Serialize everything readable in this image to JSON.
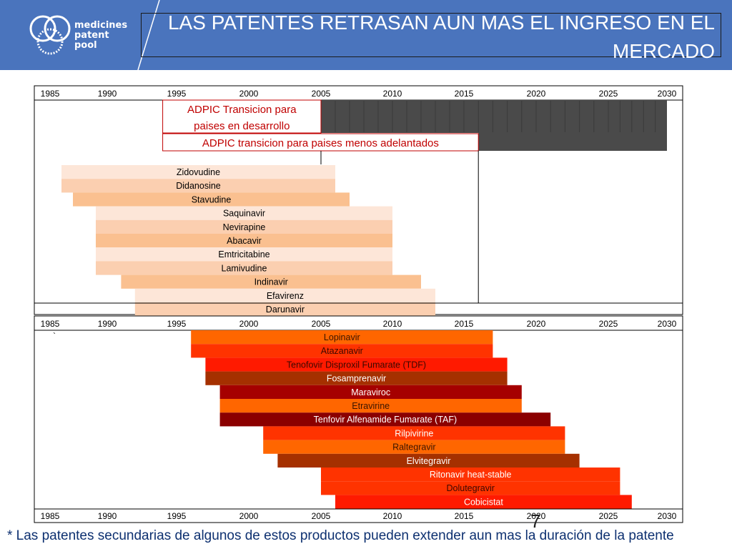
{
  "logo": {
    "lines": [
      "medicines",
      "patent",
      "pool"
    ]
  },
  "header": {
    "title_line1": "LAS PATENTES RETRASAN AUN MAS EL INGRESO EN EL",
    "title_line2": "MERCADO"
  },
  "colors": {
    "header_bg": "#4a74bd",
    "dark_fill": "#4a4a4a",
    "box_red": "#c00000",
    "footnote": "#0d3070"
  },
  "chart_data": {
    "type": "gantt",
    "axis": {
      "ticks": [
        1985,
        1990,
        1995,
        2000,
        2005,
        2010,
        2015,
        2020,
        2025,
        2030
      ],
      "min": 1985,
      "max": 2030
    },
    "trips_boxes": [
      {
        "label_lines": [
          "ADPIC Transicion para",
          "paises en desarrollo"
        ],
        "start": 1994,
        "end": 2005
      },
      {
        "label_lines": [
          "ADPIC transicion para paises menos adelantados"
        ],
        "start": 1994,
        "end": 2016
      }
    ],
    "dark_period": {
      "start": 2005,
      "end": 2030,
      "ldc_start": 2016
    },
    "ldc_deadline": 2016,
    "group1": [
      {
        "name": "Zidovudine",
        "start": 1986,
        "end": 2006,
        "color": "#fde6d8"
      },
      {
        "name": "Didanosine",
        "start": 1986,
        "end": 2006,
        "color": "#fbcfb0"
      },
      {
        "name": "Stavudine",
        "start": 1987,
        "end": 2007,
        "color": "#fac090"
      },
      {
        "name": "Saquinavir",
        "start": 1989,
        "end": 2010,
        "color": "#fde6d8"
      },
      {
        "name": "Nevirapine",
        "start": 1989,
        "end": 2010,
        "color": "#fbcfb0"
      },
      {
        "name": "Abacavir",
        "start": 1989,
        "end": 2010,
        "color": "#fac090"
      },
      {
        "name": "Emtricitabine",
        "start": 1989,
        "end": 2010,
        "color": "#fde6d8"
      },
      {
        "name": "Lamivudine",
        "start": 1989,
        "end": 2010,
        "color": "#fbcfb0"
      },
      {
        "name": "Indinavir",
        "start": 1991,
        "end": 2012,
        "color": "#fac090"
      },
      {
        "name": "Efavirenz",
        "start": 1992,
        "end": 2013,
        "color": "#fde6d8"
      },
      {
        "name": "Darunavir",
        "start": 1992,
        "end": 2013,
        "color": "#fbcfb0"
      }
    ],
    "group2": [
      {
        "name": "Lopinavir",
        "start": 1996,
        "end": 2017,
        "color": "#ff6600",
        "text": "#3a1500"
      },
      {
        "name": "Atazanavir",
        "start": 1996,
        "end": 2017,
        "color": "#ff3300",
        "text": "#3a0800"
      },
      {
        "name": "Tenofovir Disproxil Fumarate (TDF)",
        "start": 1997,
        "end": 2018,
        "color": "#ff1a00",
        "text": "#3a0800"
      },
      {
        "name": "Fosamprenavir",
        "start": 1997,
        "end": 2018,
        "color": "#a53000",
        "text": "#ffffff"
      },
      {
        "name": "Maraviroc",
        "start": 1998,
        "end": 2019,
        "color": "#a50000",
        "text": "#ffffff"
      },
      {
        "name": "Etravirine",
        "start": 1998,
        "end": 2019,
        "color": "#ff6600",
        "text": "#3a1500"
      },
      {
        "name": "Tenfovir Alfenamide Fumarate (TAF)",
        "start": 1998,
        "end": 2021,
        "color": "#8b0000",
        "text": "#ffffff"
      },
      {
        "name": "Rilpivirine",
        "start": 2001,
        "end": 2022,
        "color": "#ff3300",
        "text": "#ffffff"
      },
      {
        "name": "Raltegravir",
        "start": 2001,
        "end": 2022,
        "color": "#ff6600",
        "text": "#3a1500"
      },
      {
        "name": "Elvitegravir",
        "start": 2002,
        "end": 2023,
        "color": "#a53000",
        "text": "#ffffff"
      },
      {
        "name": "Ritonavir heat-stable",
        "start": 2005,
        "end": 2026,
        "color": "#ff3300",
        "text": "#ffffff"
      },
      {
        "name": "Dolutegravir",
        "start": 2005,
        "end": 2026,
        "color": "#ff3300",
        "text": "#3a0800"
      },
      {
        "name": "Cobicistat",
        "start": 2006,
        "end": 2027,
        "color": "#ff1a00",
        "text": "#ffffff"
      }
    ],
    "stray_mark": "`"
  },
  "page_number": "7",
  "footnote": "* Las patentes secundarias de algunos de estos productos pueden extender aun mas la duración de la patente"
}
